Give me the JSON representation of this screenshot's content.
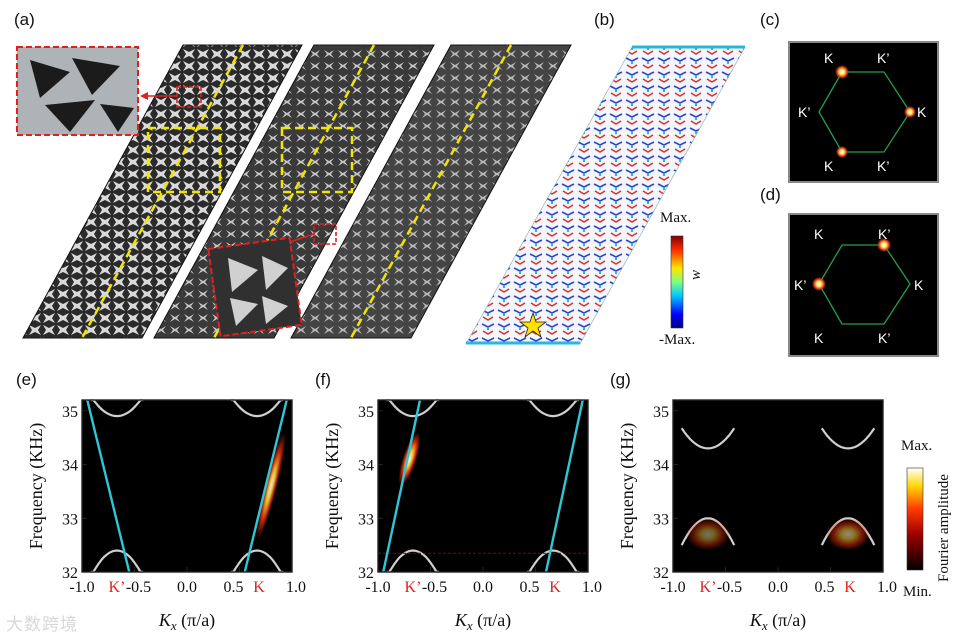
{
  "panels": {
    "a": "(a)",
    "b": "(b)",
    "c": "(c)",
    "d": "(d)",
    "e": "(e)",
    "f": "(f)",
    "g": "(g)"
  },
  "colorbar_w": {
    "max": "Max.",
    "min": "-Max.",
    "symbol": "w"
  },
  "colorbar_fourier": {
    "max": "Max.",
    "min": "Min.",
    "label": "Fourier amplitude"
  },
  "brillouin_c": {
    "labels": [
      "K",
      "K’",
      "K’",
      "K",
      "K",
      "K’"
    ],
    "bright": [
      "K",
      "K",
      "K"
    ]
  },
  "brillouin_d": {
    "labels": [
      "K",
      "K’",
      "K’",
      "K",
      "K",
      "K’"
    ],
    "bright": [
      "K’",
      "K’"
    ]
  },
  "band_plots": {
    "y_label": "Frequency (KHz)",
    "x_label_symbol": "K",
    "x_label_sub": "x",
    "x_label_unit": " (π/a)",
    "y_ticks": [
      "35",
      "34",
      "33",
      "32"
    ],
    "x_ticks": [
      "-1.0",
      "-0.5",
      "0.0",
      "0.5",
      "1.0"
    ],
    "valley_left": "K’",
    "valley_right": "K",
    "valley_color": "#e0211f",
    "edge_color": "#2fc6d8",
    "bulk_color": "#cfcfcf"
  },
  "chart_data": [
    {
      "type": "line",
      "panel": "(e)",
      "xlabel": "Kx (π/a)",
      "ylabel": "Frequency (KHz)",
      "xlim": [
        -1.0,
        1.0
      ],
      "ylim": [
        32,
        35.2
      ],
      "series": [
        {
          "values": [
            [
              -0.95,
              35.2
            ],
            [
              -0.55,
              32.0
            ]
          ]
        },
        {
          "values": [
            [
              0.55,
              32.0
            ],
            [
              0.95,
              35.2
            ]
          ]
        }
      ],
      "bright_feature": "K valley edge branch"
    },
    {
      "type": "line",
      "panel": "(f)",
      "xlabel": "Kx (π/a)",
      "ylabel": "Frequency (KHz)",
      "xlim": [
        -1.0,
        1.0
      ],
      "ylim": [
        32,
        35.2
      ],
      "series": [
        {
          "values": [
            [
              -0.6,
              35.2
            ],
            [
              -0.95,
              32.0
            ]
          ]
        },
        {
          "values": [
            [
              0.95,
              35.2
            ],
            [
              0.6,
              32.0
            ]
          ]
        }
      ],
      "bright_feature": "K’ valley edge branch"
    },
    {
      "type": "line",
      "panel": "(g)",
      "xlabel": "Kx (π/a)",
      "ylabel": "Frequency (KHz)",
      "xlim": [
        -1.0,
        1.0
      ],
      "ylim": [
        32,
        35.2
      ],
      "bright_feature": "bulk bands only"
    }
  ],
  "watermark": "大数跨境"
}
